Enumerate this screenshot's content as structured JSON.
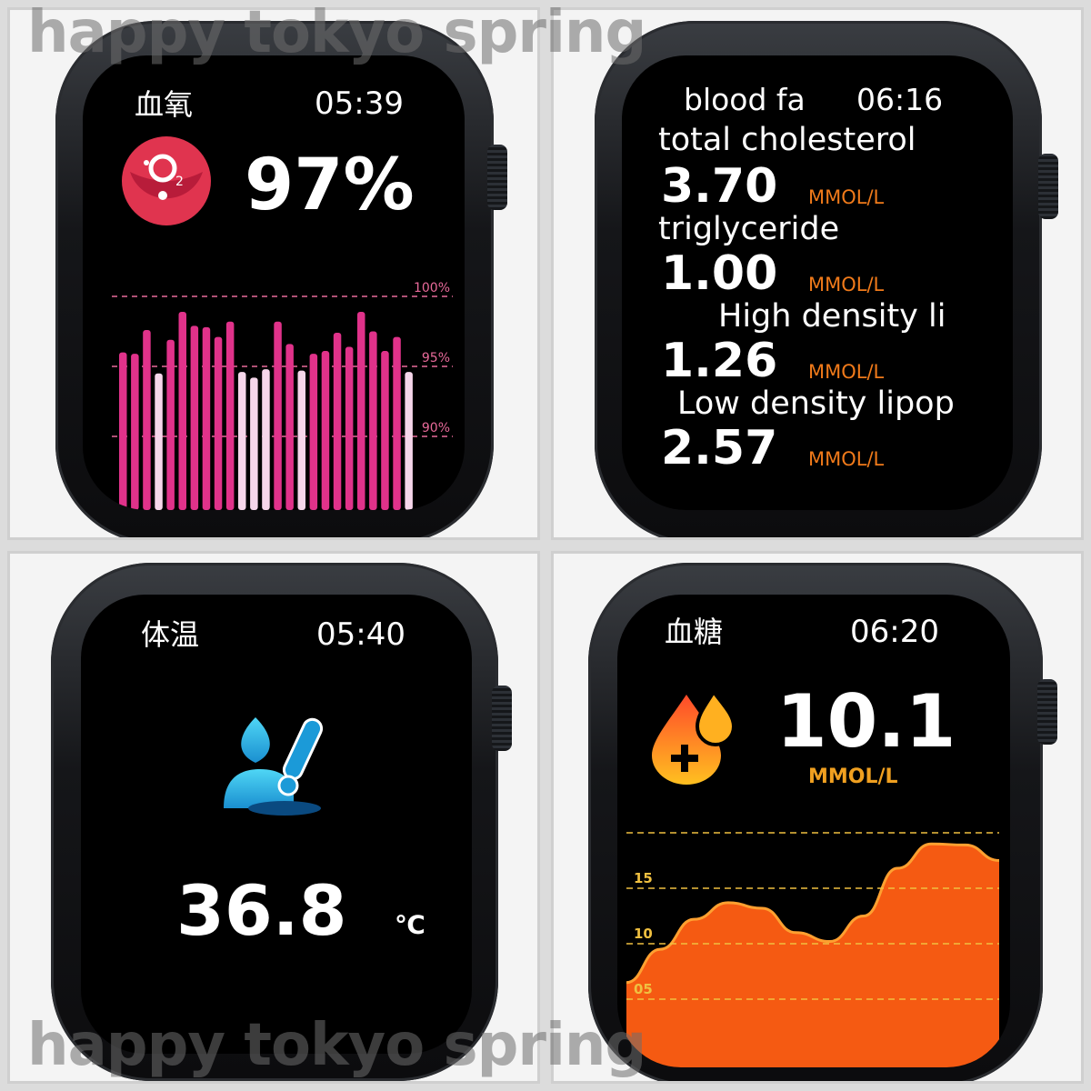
{
  "watermark": "happy tokyo spring",
  "panels": {
    "spo2": {
      "title": "血氧",
      "time": "05:39",
      "value": "97%",
      "icon": "oxygen-o2-icon",
      "chart_data": {
        "type": "bar",
        "y_ticks": [
          "100%",
          "95%",
          "90%"
        ],
        "ylim": [
          88,
          100
        ],
        "values": [
          96.0,
          95.9,
          97.6,
          94.5,
          96.9,
          98.9,
          97.9,
          97.8,
          97.1,
          98.2,
          94.6,
          94.2,
          94.8,
          98.2,
          96.6,
          94.7,
          95.9,
          96.1,
          97.4,
          96.4,
          98.9,
          97.5,
          96.1,
          97.1,
          94.6
        ],
        "colors": {
          "normal": "#e0328a",
          "low": "#f6d6ea",
          "grid": "#e86a9a"
        }
      }
    },
    "blood_fat": {
      "title": "blood fa",
      "time": "06:16",
      "unit": "MMOL/L",
      "items": [
        {
          "label": "total cholesterol",
          "value": "3.70"
        },
        {
          "label": "triglyceride",
          "value": "1.00"
        },
        {
          "label": "High density li",
          "value": "1.26"
        },
        {
          "label": "Low density lipop",
          "value": "2.57"
        }
      ],
      "unit_color": "#f07a1a"
    },
    "temperature": {
      "title": "体温",
      "time": "05:40",
      "value": "36.8",
      "unit": "℃",
      "icon": "body-thermometer-icon",
      "accent": "#2ab6ea"
    },
    "glucose": {
      "title": "血糖",
      "time": "06:20",
      "value": "10.1",
      "unit": "MMOL/L",
      "icon": "blood-drop-plus-icon",
      "chart_data": {
        "type": "area",
        "y_ticks": [
          "15",
          "10",
          "05"
        ],
        "ylim": [
          3,
          20
        ],
        "points": [
          6.5,
          9.5,
          12.2,
          13.7,
          13.2,
          11.0,
          10.2,
          12.5,
          16.8,
          19.0,
          18.9,
          17.5
        ],
        "colors": {
          "fill": "#f55a12",
          "line": "#ffa030",
          "grid": "#f0c040"
        }
      },
      "unit_color": "#f0a020"
    }
  }
}
